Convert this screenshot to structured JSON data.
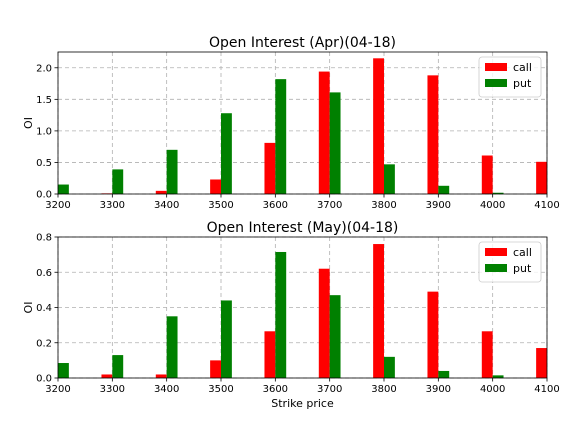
{
  "chart_data": [
    {
      "type": "bar",
      "title": "Open Interest (Apr)(04-18)",
      "xlabel": "",
      "ylabel": "OI",
      "xlim": [
        3200,
        4100
      ],
      "ylim": [
        0,
        2.25
      ],
      "xticks": [
        "3200",
        "3300",
        "3400",
        "3500",
        "3600",
        "3700",
        "3800",
        "3900",
        "4000",
        "4100"
      ],
      "yticks": [
        "0.0",
        "0.5",
        "1.0",
        "1.5",
        "2.0"
      ],
      "grid": true,
      "legend_position": "top-right",
      "x": [
        3200,
        3300,
        3400,
        3500,
        3600,
        3700,
        3800,
        3900,
        4000,
        4100
      ],
      "series": [
        {
          "name": "call",
          "color": "#ff0000",
          "values": [
            0,
            0.01,
            0.05,
            0.23,
            0.81,
            1.94,
            2.15,
            1.88,
            0.61,
            0.51
          ]
        },
        {
          "name": "put",
          "color": "#008000",
          "values": [
            0.15,
            0.39,
            0.7,
            1.28,
            1.82,
            1.61,
            0.47,
            0.13,
            0.02,
            0
          ]
        }
      ]
    },
    {
      "type": "bar",
      "title": "Open Interest (May)(04-18)",
      "xlabel": "Strike price",
      "ylabel": "OI",
      "xlim": [
        3200,
        4100
      ],
      "ylim": [
        0,
        0.8
      ],
      "xticks": [
        "3200",
        "3300",
        "3400",
        "3500",
        "3600",
        "3700",
        "3800",
        "3900",
        "4000",
        "4100"
      ],
      "yticks": [
        "0.0",
        "0.2",
        "0.4",
        "0.6",
        "0.8"
      ],
      "grid": true,
      "legend_position": "top-right",
      "x": [
        3200,
        3300,
        3400,
        3500,
        3600,
        3700,
        3800,
        3900,
        4000,
        4100
      ],
      "series": [
        {
          "name": "call",
          "color": "#ff0000",
          "values": [
            0,
            0.02,
            0.02,
            0.1,
            0.265,
            0.62,
            0.76,
            0.49,
            0.265,
            0.17
          ]
        },
        {
          "name": "put",
          "color": "#008000",
          "values": [
            0.085,
            0.13,
            0.35,
            0.44,
            0.715,
            0.47,
            0.12,
            0.04,
            0.015,
            0
          ]
        }
      ]
    }
  ]
}
